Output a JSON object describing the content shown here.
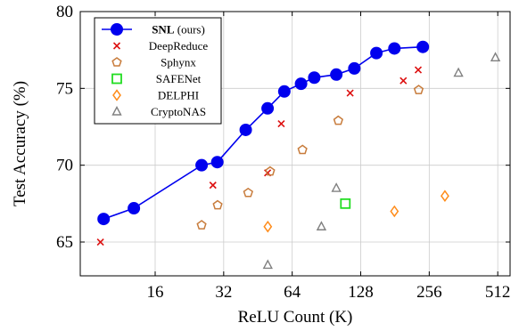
{
  "chart_data": {
    "type": "scatter",
    "xlabel": "ReLU Count (K)",
    "ylabel": "Test Accuracy (%)",
    "x_scale": "log2",
    "xlim": [
      7.5,
      580
    ],
    "ylim": [
      62.8,
      80
    ],
    "x_ticks": [
      16,
      32,
      64,
      128,
      256,
      512
    ],
    "x_tick_labels": [
      "16",
      "32",
      "64",
      "128",
      "256",
      "512"
    ],
    "y_ticks": [
      65,
      70,
      75,
      80
    ],
    "y_tick_labels": [
      "65",
      "70",
      "75",
      "80"
    ],
    "grid": true,
    "legend_position": "top-left",
    "series": [
      {
        "name": "SNL",
        "name_suffix": "(ours)",
        "marker": "circle-line",
        "color": "#0000ee",
        "points": [
          [
            9.5,
            66.5
          ],
          [
            12.9,
            67.2
          ],
          [
            25.6,
            70.0
          ],
          [
            30,
            70.2
          ],
          [
            40,
            72.3
          ],
          [
            49.9,
            73.7
          ],
          [
            59.1,
            74.8
          ],
          [
            70,
            75.3
          ],
          [
            80,
            75.7
          ],
          [
            100,
            75.9
          ],
          [
            120,
            76.3
          ],
          [
            150,
            77.3
          ],
          [
            180,
            77.6
          ],
          [
            240,
            77.7
          ]
        ]
      },
      {
        "name": "DeepReduce",
        "marker": "cross",
        "color": "#dd1111",
        "points": [
          [
            9.2,
            65.0
          ],
          [
            28.7,
            68.7
          ],
          [
            49.9,
            69.5
          ],
          [
            57.3,
            72.7
          ],
          [
            115,
            74.7
          ],
          [
            197,
            75.5
          ],
          [
            229,
            76.2
          ]
        ]
      },
      {
        "name": "Sphynx",
        "marker": "pentagon",
        "color": "#c87c3c",
        "points": [
          [
            25.6,
            66.1
          ],
          [
            30.1,
            67.4
          ],
          [
            41,
            68.2
          ],
          [
            51.2,
            69.6
          ],
          [
            71,
            71.0
          ],
          [
            102,
            72.9
          ],
          [
            230,
            74.9
          ]
        ]
      },
      {
        "name": "SAFENet",
        "marker": "square",
        "color": "#22dd22",
        "points": [
          [
            109.6,
            67.5
          ]
        ]
      },
      {
        "name": "DELPHI",
        "marker": "diamond",
        "color": "#ff8c1a",
        "points": [
          [
            50,
            66.0
          ],
          [
            180,
            67.0
          ],
          [
            300,
            68.0
          ]
        ]
      },
      {
        "name": "CryptoNAS",
        "marker": "triangle",
        "color": "#808080",
        "points": [
          [
            50,
            63.5
          ],
          [
            86,
            66.0
          ],
          [
            100,
            68.5
          ],
          [
            344,
            76.0
          ],
          [
            500,
            77.0
          ]
        ]
      }
    ]
  }
}
